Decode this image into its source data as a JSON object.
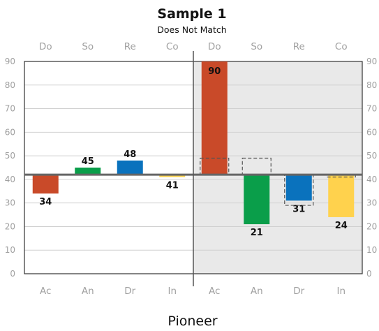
{
  "chart_data": {
    "type": "bar",
    "title": "Sample 1",
    "subtitle": "Does Not Match",
    "xlabel": "Pioneer",
    "ylim": [
      0,
      90
    ],
    "yticks": [
      0,
      10,
      20,
      30,
      40,
      50,
      60,
      70,
      80,
      90
    ],
    "baseline": 42,
    "grid": true,
    "panels": [
      {
        "top_labels": [
          "Do",
          "So",
          "Re",
          "Co"
        ],
        "categories": [
          "Ac",
          "An",
          "Dr",
          "In"
        ],
        "values": [
          34,
          45,
          48,
          41
        ],
        "colors": [
          "#c94a29",
          "#0a9e4a",
          "#0a72bd",
          "#ffd24d"
        ],
        "shaded": false
      },
      {
        "top_labels": [
          "Do",
          "So",
          "Re",
          "Co"
        ],
        "categories": [
          "Ac",
          "An",
          "Dr",
          "In"
        ],
        "values": [
          90,
          21,
          31,
          24
        ],
        "colors": [
          "#c94a29",
          "#0a9e4a",
          "#0a72bd",
          "#ffd24d"
        ],
        "dashed_reference": [
          49,
          49,
          29,
          41
        ],
        "shaded": true
      }
    ]
  }
}
